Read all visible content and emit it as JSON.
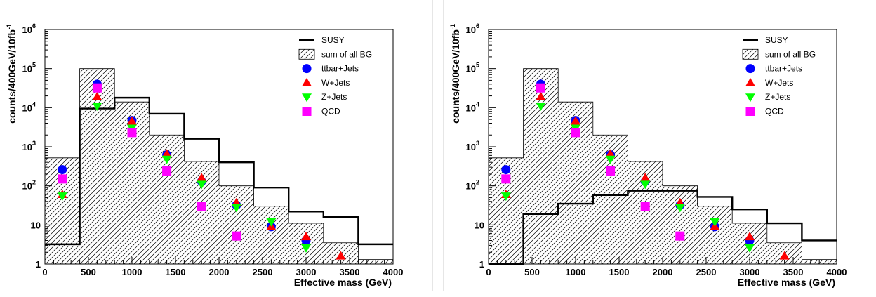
{
  "chart_data": [
    {
      "type": "bar",
      "panel": "left",
      "xlabel": "Effective mass (GeV)",
      "ylabel": "counts/400GeV/10fb",
      "ylabel_sup": "-1",
      "xlim": [
        0,
        4000
      ],
      "ylim": [
        1,
        1000000
      ],
      "yscale": "log",
      "grid": false,
      "legend_position": "top-right",
      "x_ticks": [
        "0",
        "500",
        "1000",
        "1500",
        "2000",
        "2500",
        "3000",
        "3500",
        "4000"
      ],
      "y_ticks": [
        {
          "base": "1",
          "exp": ""
        },
        {
          "base": "10",
          "exp": ""
        },
        {
          "base": "10",
          "exp": "2"
        },
        {
          "base": "10",
          "exp": "3"
        },
        {
          "base": "10",
          "exp": "4"
        },
        {
          "base": "10",
          "exp": "5"
        },
        {
          "base": "10",
          "exp": "6"
        }
      ],
      "bin_edges": [
        0,
        400,
        800,
        1200,
        1600,
        2000,
        2400,
        2800,
        3200,
        3600,
        4000
      ],
      "susy": {
        "name": "SUSY",
        "color": "#000000",
        "values": [
          3.2,
          9500,
          18000,
          7000,
          1600,
          400,
          90,
          22,
          16,
          3.2
        ]
      },
      "bg": {
        "name": "sum of all BG",
        "color": "#000000",
        "values": [
          520,
          100000,
          14000,
          2000,
          420,
          100,
          30,
          11,
          3.5,
          1.3
        ]
      },
      "series": [
        {
          "name": "ttbar+Jets",
          "marker": "circle",
          "color": "#0000ff",
          "x": [
            200,
            600,
            1000,
            1400,
            1800,
            2200,
            2600,
            3000
          ],
          "values": [
            260,
            40000,
            4700,
            620,
            130,
            32,
            9,
            4
          ]
        },
        {
          "name": "W+Jets",
          "marker": "triangle-up",
          "color": "#ff0000",
          "x": [
            200,
            600,
            1000,
            1400,
            1800,
            2200,
            2600,
            3000,
            3400
          ],
          "values": [
            60,
            19000,
            4500,
            650,
            160,
            37,
            9,
            5,
            1.6
          ]
        },
        {
          "name": "Z+Jets",
          "marker": "triangle-down",
          "color": "#00ff00",
          "x": [
            200,
            600,
            1000,
            1400,
            1800,
            2200,
            2600,
            3000
          ],
          "values": [
            55,
            11000,
            3000,
            480,
            110,
            28,
            12,
            2.6
          ]
        },
        {
          "name": "QCD",
          "marker": "square",
          "color": "#ff00ff",
          "x": [
            200,
            600,
            1000,
            1400,
            1800,
            2200
          ],
          "values": [
            150,
            32000,
            2300,
            240,
            30,
            5.2
          ]
        }
      ]
    },
    {
      "type": "bar",
      "panel": "right",
      "xlabel": "Effective mass (GeV)",
      "ylabel": "counts/400GeV/10fb",
      "ylabel_sup": "-1",
      "xlim": [
        0,
        4000
      ],
      "ylim": [
        1,
        1000000
      ],
      "yscale": "log",
      "grid": false,
      "legend_position": "top-right",
      "x_ticks": [
        "0",
        "500",
        "1000",
        "1500",
        "2000",
        "2500",
        "3000",
        "3500",
        "4000"
      ],
      "y_ticks": [
        {
          "base": "1",
          "exp": ""
        },
        {
          "base": "10",
          "exp": ""
        },
        {
          "base": "10",
          "exp": "2"
        },
        {
          "base": "10",
          "exp": "3"
        },
        {
          "base": "10",
          "exp": "4"
        },
        {
          "base": "10",
          "exp": "5"
        },
        {
          "base": "10",
          "exp": "6"
        }
      ],
      "bin_edges": [
        0,
        400,
        800,
        1200,
        1600,
        2000,
        2400,
        2800,
        3200,
        3600,
        4000
      ],
      "susy": {
        "name": "SUSY",
        "color": "#000000",
        "values": [
          1,
          19,
          35,
          58,
          75,
          75,
          52,
          25,
          11,
          4
        ]
      },
      "bg": {
        "name": "sum of all BG",
        "color": "#000000",
        "values": [
          520,
          100000,
          14000,
          2000,
          420,
          100,
          30,
          11,
          3.5,
          1.3
        ]
      },
      "series": [
        {
          "name": "ttbar+Jets",
          "marker": "circle",
          "color": "#0000ff",
          "x": [
            200,
            600,
            1000,
            1400,
            1800,
            2200,
            2600,
            3000
          ],
          "values": [
            260,
            40000,
            4700,
            620,
            130,
            32,
            9,
            4
          ]
        },
        {
          "name": "W+Jets",
          "marker": "triangle-up",
          "color": "#ff0000",
          "x": [
            200,
            600,
            1000,
            1400,
            1800,
            2200,
            2600,
            3000,
            3400
          ],
          "values": [
            60,
            19000,
            4500,
            650,
            160,
            37,
            9,
            5,
            1.6
          ]
        },
        {
          "name": "Z+Jets",
          "marker": "triangle-down",
          "color": "#00ff00",
          "x": [
            200,
            600,
            1000,
            1400,
            1800,
            2200,
            2600,
            3000
          ],
          "values": [
            55,
            11000,
            3000,
            480,
            110,
            28,
            12,
            2.6
          ]
        },
        {
          "name": "QCD",
          "marker": "square",
          "color": "#ff00ff",
          "x": [
            200,
            600,
            1000,
            1400,
            1800,
            2200
          ],
          "values": [
            150,
            32000,
            2300,
            240,
            30,
            5.2
          ]
        }
      ]
    }
  ]
}
